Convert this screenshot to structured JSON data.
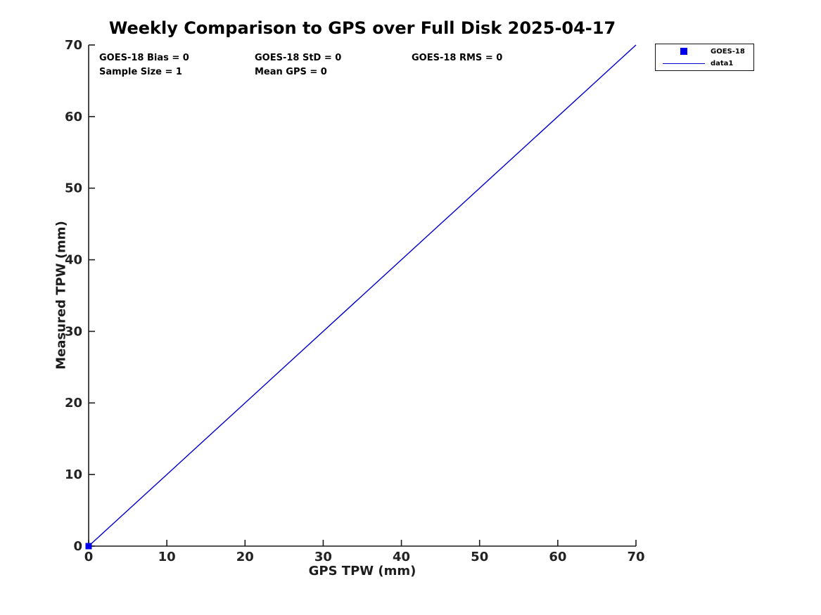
{
  "chart_data": {
    "type": "line",
    "title": "Weekly Comparison to GPS over Full Disk 2025-04-17",
    "xlabel": "GPS TPW (mm)",
    "ylabel": "Measured TPW (mm)",
    "xlim": [
      0,
      70
    ],
    "ylim": [
      0,
      70
    ],
    "x_ticks": [
      0,
      10,
      20,
      30,
      40,
      50,
      60,
      70
    ],
    "y_ticks": [
      0,
      10,
      20,
      30,
      40,
      50,
      60,
      70
    ],
    "grid": false,
    "box": false,
    "colors": {
      "line": "#0000cc",
      "marker": "#0000ee",
      "axis": "#1c1c1c",
      "tick_text": "#222222",
      "title_text": "#000000"
    },
    "series": [
      {
        "name": "GOES-18",
        "kind": "scatter",
        "marker": "square",
        "color": "#0000ee",
        "points": [
          [
            0,
            0
          ]
        ]
      },
      {
        "name": "data1",
        "kind": "line",
        "color": "#0000cc",
        "points": [
          [
            0,
            0
          ],
          [
            70,
            70
          ]
        ]
      }
    ],
    "legend": {
      "position": "outside-top-right",
      "entries": [
        {
          "label": "GOES-18",
          "symbol": "marker",
          "color": "#0000ee"
        },
        {
          "label": "data1",
          "symbol": "line",
          "color": "#0000cc"
        }
      ]
    },
    "annotations": [
      "GOES-18 Bias = 0",
      "GOES-18 StD = 0",
      "GOES-18 RMS = 0",
      "Sample Size = 1",
      "Mean GPS = 0"
    ]
  }
}
